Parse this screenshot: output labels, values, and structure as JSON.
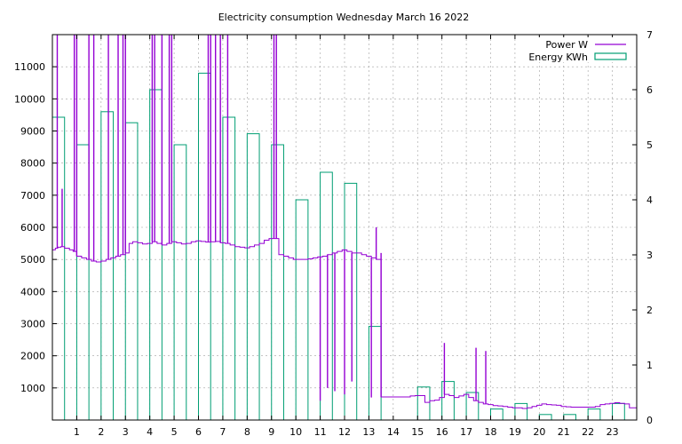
{
  "chart_data": {
    "type": "bar",
    "title": "Electricity consumption Wednesday March 16 2022",
    "xlabel": "",
    "ylabel": "",
    "y2label": "",
    "xlim": [
      0,
      24
    ],
    "ylim": [
      0,
      12000
    ],
    "y2lim": [
      0,
      7
    ],
    "grid": true,
    "legend_position": "top-right",
    "x_ticks": [
      1,
      2,
      3,
      4,
      5,
      6,
      7,
      8,
      9,
      10,
      11,
      12,
      13,
      14,
      15,
      16,
      17,
      18,
      19,
      20,
      21,
      22,
      23
    ],
    "y_ticks": [
      1000,
      2000,
      3000,
      4000,
      5000,
      6000,
      7000,
      8000,
      9000,
      10000,
      11000
    ],
    "y2_ticks": [
      0,
      1,
      2,
      3,
      4,
      5,
      6,
      7
    ],
    "colors": {
      "power": "#9400d3",
      "energy": "#009e73",
      "grid": "#a0a0a0"
    },
    "series": [
      {
        "name": "Power W",
        "axis": "y",
        "type": "line",
        "x": [
          0,
          0.12,
          0.22,
          0.35,
          0.5,
          0.7,
          0.85,
          1.0,
          1.2,
          1.4,
          1.6,
          1.8,
          2.0,
          2.2,
          2.4,
          2.6,
          2.8,
          3.0,
          3.15,
          3.3,
          3.5,
          3.7,
          3.9,
          4.1,
          4.3,
          4.5,
          4.7,
          4.9,
          5.1,
          5.3,
          5.5,
          5.7,
          5.9,
          6.1,
          6.3,
          6.5,
          6.7,
          6.9,
          7.1,
          7.3,
          7.5,
          7.7,
          7.9,
          8.1,
          8.3,
          8.5,
          8.7,
          8.9,
          9.1,
          9.3,
          9.5,
          9.7,
          9.9,
          10.1,
          10.3,
          10.5,
          10.7,
          10.9,
          11.1,
          11.3,
          11.5,
          11.7,
          11.9,
          12.1,
          12.3,
          12.5,
          12.7,
          12.9,
          13.1,
          13.3,
          13.5,
          13.7,
          13.9,
          14.1,
          14.3,
          14.5,
          14.7,
          14.9,
          15.1,
          15.3,
          15.5,
          15.7,
          15.9,
          16.1,
          16.3,
          16.5,
          16.7,
          16.9,
          17.1,
          17.3,
          17.5,
          17.7,
          17.9,
          18.1,
          18.3,
          18.5,
          18.7,
          18.9,
          19.1,
          19.3,
          19.5,
          19.7,
          19.9,
          20.1,
          20.3,
          20.5,
          20.7,
          20.9,
          21.1,
          21.3,
          21.5,
          21.7,
          21.9,
          22.1,
          22.3,
          22.5,
          22.7,
          22.9,
          23.1,
          23.3,
          23.5,
          23.7,
          24.0
        ],
        "values": [
          5300,
          5350,
          5380,
          5400,
          5350,
          5300,
          5250,
          5100,
          5050,
          5000,
          4950,
          4920,
          4950,
          5000,
          5050,
          5100,
          5150,
          5200,
          5500,
          5550,
          5520,
          5480,
          5500,
          5550,
          5500,
          5450,
          5500,
          5550,
          5520,
          5480,
          5500,
          5550,
          5580,
          5560,
          5540,
          5550,
          5560,
          5520,
          5500,
          5450,
          5400,
          5380,
          5360,
          5400,
          5450,
          5500,
          5600,
          5650,
          5650,
          5150,
          5100,
          5050,
          5000,
          5000,
          5000,
          5020,
          5050,
          5080,
          5100,
          5150,
          5200,
          5250,
          5300,
          5250,
          5200,
          5200,
          5150,
          5100,
          5050,
          5000,
          720,
          720,
          720,
          720,
          720,
          720,
          750,
          760,
          760,
          550,
          600,
          620,
          700,
          800,
          760,
          700,
          750,
          800,
          700,
          600,
          550,
          500,
          480,
          450,
          440,
          420,
          400,
          380,
          380,
          360,
          380,
          420,
          460,
          500,
          480,
          470,
          460,
          420,
          410,
          400,
          400,
          400,
          400,
          400,
          420,
          480,
          500,
          520,
          540,
          520,
          500,
          380,
          380
        ]
      },
      {
        "name": "Energy KWh",
        "axis": "y2",
        "type": "bar",
        "x": [
          0,
          1,
          2,
          3,
          4,
          5,
          6,
          7,
          8,
          9,
          10,
          11,
          12,
          13,
          14,
          15,
          16,
          17,
          18,
          19,
          20,
          21,
          22,
          23
        ],
        "values": [
          5.5,
          5.0,
          5.6,
          5.4,
          6.0,
          5.0,
          6.3,
          5.5,
          5.2,
          5.0,
          4.0,
          4.5,
          4.3,
          1.7,
          0,
          0.6,
          0.7,
          0.5,
          0.2,
          0.3,
          0.1,
          0.1,
          0.2,
          0.3
        ]
      }
    ],
    "power_spikes": [
      {
        "x": 0.2,
        "to": 12000
      },
      {
        "x": 0.4,
        "to": 7200
      },
      {
        "x": 0.9,
        "to": 12000
      },
      {
        "x": 1.0,
        "to": 12000
      },
      {
        "x": 1.5,
        "to": 12000
      },
      {
        "x": 1.7,
        "to": 12000
      },
      {
        "x": 2.3,
        "to": 12000
      },
      {
        "x": 2.7,
        "to": 12000
      },
      {
        "x": 2.9,
        "to": 12000
      },
      {
        "x": 3.0,
        "to": 12000
      },
      {
        "x": 4.1,
        "to": 12000
      },
      {
        "x": 4.2,
        "to": 12000
      },
      {
        "x": 4.5,
        "to": 12000
      },
      {
        "x": 4.8,
        "to": 12000
      },
      {
        "x": 4.9,
        "to": 12000
      },
      {
        "x": 6.4,
        "to": 12000
      },
      {
        "x": 6.5,
        "to": 12000
      },
      {
        "x": 6.7,
        "to": 12000
      },
      {
        "x": 6.9,
        "to": 12000
      },
      {
        "x": 7.2,
        "to": 12000
      },
      {
        "x": 9.1,
        "to": 12000
      },
      {
        "x": 9.2,
        "to": 12000
      },
      {
        "x": 11.0,
        "to": 600
      },
      {
        "x": 11.3,
        "to": 1000
      },
      {
        "x": 11.6,
        "to": 900
      },
      {
        "x": 12.0,
        "to": 800
      },
      {
        "x": 12.3,
        "to": 1200
      },
      {
        "x": 13.1,
        "to": 700
      },
      {
        "x": 13.3,
        "to": 6000
      },
      {
        "x": 13.5,
        "to": 5200
      },
      {
        "x": 16.1,
        "to": 2400
      },
      {
        "x": 17.4,
        "to": 2250
      },
      {
        "x": 17.8,
        "to": 2150
      }
    ]
  }
}
